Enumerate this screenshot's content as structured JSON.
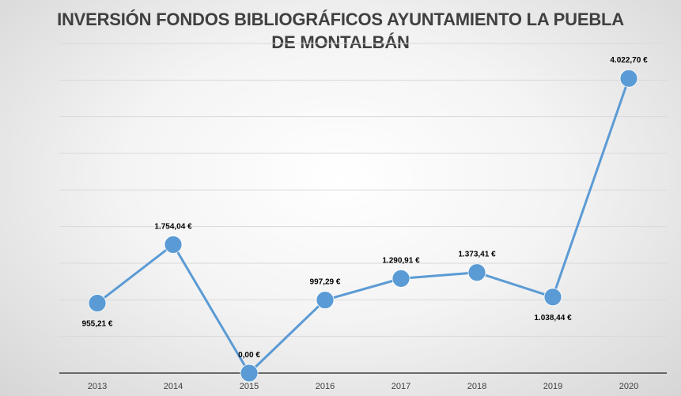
{
  "chart_data": {
    "type": "line",
    "title": "INVERSIÓN FONDOS BIBLIOGRÁFICOS AYUNTAMIENTO LA PUEBLA DE MONTALBÁN",
    "xlabel": "",
    "ylabel": "",
    "categories": [
      "2013",
      "2014",
      "2015",
      "2016",
      "2017",
      "2018",
      "2019",
      "2020"
    ],
    "values": [
      955.21,
      1754.04,
      0.0,
      997.29,
      1290.91,
      1373.41,
      1038.44,
      4022.7
    ],
    "data_labels": [
      "955,21 €",
      "1.754,04 €",
      "0,00 €",
      "997,29 €",
      "1.290,91 €",
      "1.373,41 €",
      "1.038,44 €",
      "4.022,70 €"
    ],
    "ylim": [
      0,
      4500
    ],
    "grid": true,
    "y_tick_labels_visible": false,
    "legend": "none",
    "colors": {
      "line": "#5b9bd5",
      "marker": "#5b9bd5",
      "grid": "#d9d9d9",
      "axis": "#404040"
    }
  }
}
